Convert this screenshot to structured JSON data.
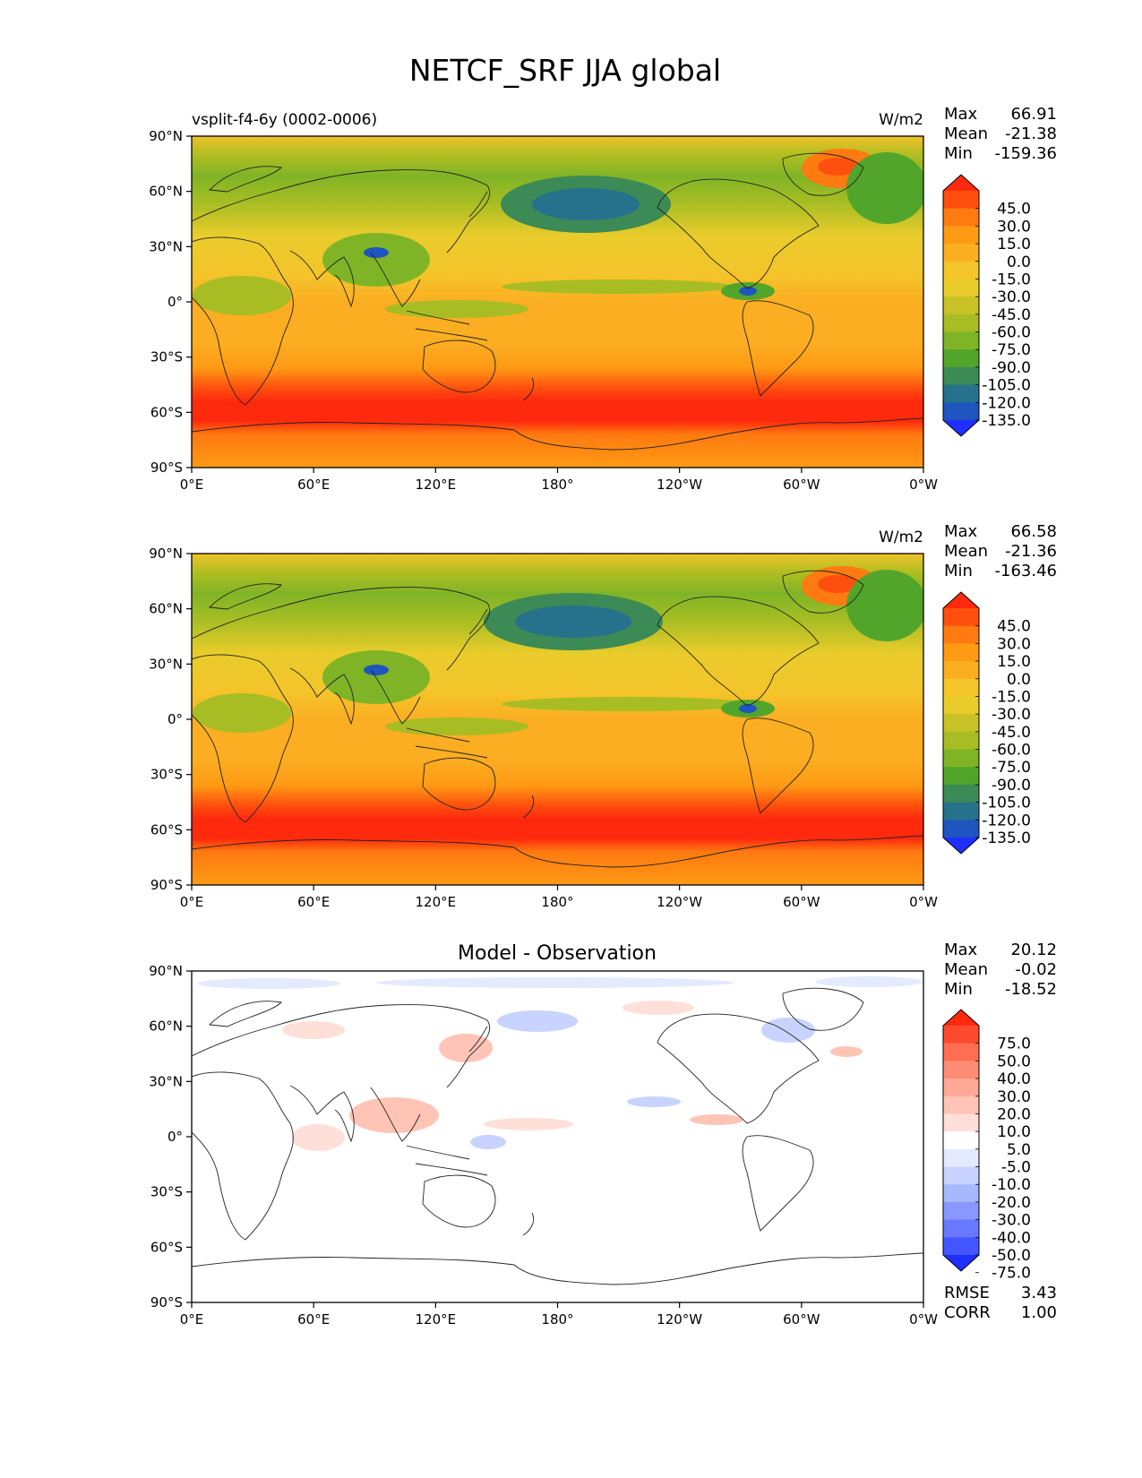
{
  "title": "NETCF_SRF JJA global",
  "panels": [
    {
      "id": "test",
      "left_title": "vsplit-f4-6y (0002-0006)",
      "center_title": "",
      "units": "W/m2",
      "stats": [
        {
          "label": "Max",
          "value": "66.91"
        },
        {
          "label": "Mean",
          "value": "-21.38"
        },
        {
          "label": "Min",
          "value": "-159.36"
        }
      ],
      "colorbar": {
        "levels": [
          "45.0",
          "30.0",
          "15.0",
          "0.0",
          "-15.0",
          "-30.0",
          "-45.0",
          "-60.0",
          "-75.0",
          "-90.0",
          "-105.0",
          "-120.0",
          "-135.0"
        ],
        "colors": [
          "#ff2a0e",
          "#ff4f0e",
          "#ff7a10",
          "#ff9a14",
          "#fbae22",
          "#f4c42a",
          "#e9cc2b",
          "#c8c226",
          "#a7bd23",
          "#7fb426",
          "#52a52b",
          "#3c8a55",
          "#26728c",
          "#1f55c0",
          "#1f2fff"
        ]
      }
    },
    {
      "id": "reference",
      "left_title": "",
      "center_title": "",
      "units": "W/m2",
      "stats": [
        {
          "label": "Max",
          "value": "66.58"
        },
        {
          "label": "Mean",
          "value": "-21.36"
        },
        {
          "label": "Min",
          "value": "-163.46"
        }
      ],
      "colorbar": {
        "levels": [
          "45.0",
          "30.0",
          "15.0",
          "0.0",
          "-15.0",
          "-30.0",
          "-45.0",
          "-60.0",
          "-75.0",
          "-90.0",
          "-105.0",
          "-120.0",
          "-135.0"
        ],
        "colors": [
          "#ff2a0e",
          "#ff4f0e",
          "#ff7a10",
          "#ff9a14",
          "#fbae22",
          "#f4c42a",
          "#e9cc2b",
          "#c8c226",
          "#a7bd23",
          "#7fb426",
          "#52a52b",
          "#3c8a55",
          "#26728c",
          "#1f55c0",
          "#1f2fff"
        ]
      }
    },
    {
      "id": "diff",
      "left_title": "",
      "center_title": "Model - Observation",
      "units": "",
      "stats": [
        {
          "label": "Max",
          "value": "20.12"
        },
        {
          "label": "Mean",
          "value": "-0.02"
        },
        {
          "label": "Min",
          "value": "-18.52"
        }
      ],
      "colorbar": {
        "levels": [
          "75.0",
          "50.0",
          "40.0",
          "30.0",
          "20.0",
          "10.0",
          "5.0",
          "-5.0",
          "-10.0",
          "-20.0",
          "-30.0",
          "-40.0",
          "-50.0",
          "-75.0"
        ],
        "colors": [
          "#ff2a0e",
          "#ff4a2e",
          "#ff6e52",
          "#ff8c74",
          "#ffa896",
          "#ffc4b6",
          "#ffe0d8",
          "#ffffff",
          "#e4eaff",
          "#c8d4ff",
          "#a8b8ff",
          "#8898ff",
          "#6878ff",
          "#4456ff",
          "#1f2fff"
        ]
      },
      "bottom_stats": [
        {
          "label": "RMSE",
          "value": "3.43"
        },
        {
          "label": "CORR",
          "value": "1.00"
        }
      ]
    }
  ],
  "axes": {
    "lat_ticks": [
      "90°N",
      "60°N",
      "30°N",
      "0°",
      "30°S",
      "60°S",
      "90°S"
    ],
    "lon_ticks": [
      "0°E",
      "60°E",
      "120°E",
      "180°",
      "120°W",
      "60°W",
      "0°W"
    ]
  }
}
